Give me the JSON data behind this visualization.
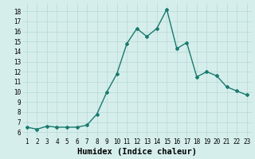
{
  "x": [
    1,
    2,
    3,
    4,
    5,
    6,
    7,
    8,
    9,
    10,
    11,
    12,
    13,
    14,
    15,
    16,
    17,
    18,
    19,
    20,
    21,
    22,
    23
  ],
  "y": [
    6.5,
    6.3,
    6.6,
    6.5,
    6.5,
    6.5,
    6.7,
    7.8,
    10.0,
    11.8,
    14.8,
    16.3,
    15.5,
    16.3,
    18.2,
    14.3,
    14.9,
    11.5,
    12.0,
    11.6,
    10.5,
    10.1,
    9.7
  ],
  "line_color": "#1a7a6e",
  "marker": "D",
  "marker_size": 2,
  "bg_color": "#d5eeec",
  "grid_color": "#b8d8d4",
  "xlabel": "Humidex (Indice chaleur)",
  "ylabel_ticks": [
    6,
    7,
    8,
    9,
    10,
    11,
    12,
    13,
    14,
    15,
    16,
    17,
    18
  ],
  "ylim": [
    5.5,
    18.8
  ],
  "xlim": [
    0.5,
    23.5
  ],
  "xticks": [
    1,
    2,
    3,
    4,
    5,
    6,
    7,
    8,
    9,
    10,
    11,
    12,
    13,
    14,
    15,
    16,
    17,
    18,
    19,
    20,
    21,
    22,
    23
  ],
  "xlabel_fontsize": 7.5,
  "tick_fontsize": 5.5,
  "line_width": 1.0
}
